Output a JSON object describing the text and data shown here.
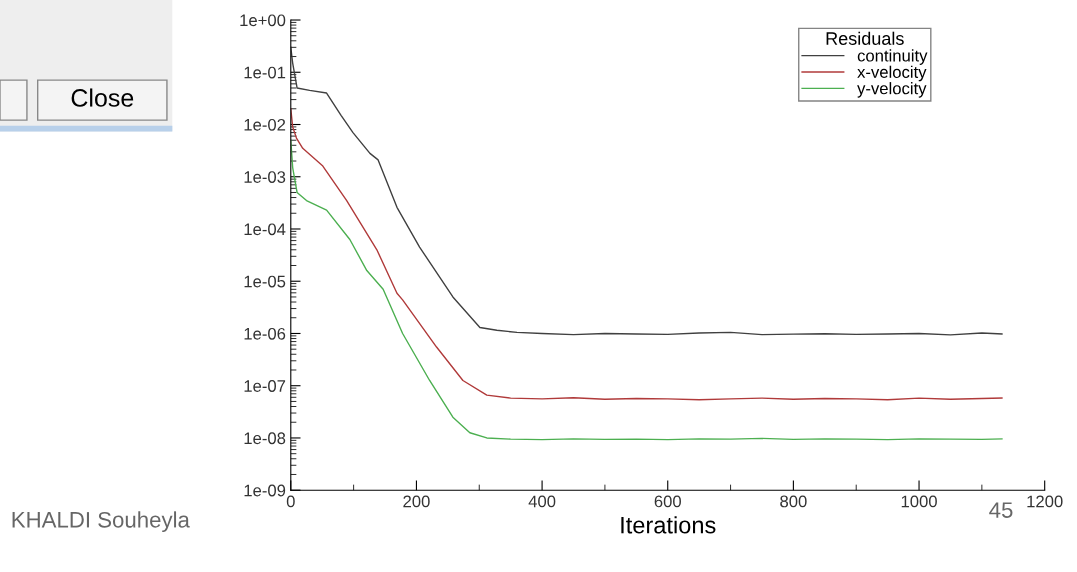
{
  "chart_data": {
    "type": "line",
    "xlabel": "Iterations",
    "legend_title": "Residuals",
    "legend": "top right",
    "log": "y",
    "grid": false,
    "marker": "none",
    "line_style": "solid",
    "xlim": [
      0,
      1200
    ],
    "ylim": [
      1e-09,
      1
    ],
    "xticks": [
      0,
      {
        "value": 100,
        "label": null
      },
      200,
      {
        "value": 300,
        "label": null
      },
      400,
      {
        "value": 500,
        "label": null
      },
      600,
      {
        "value": 700,
        "label": null
      },
      800,
      {
        "value": 900,
        "label": null
      },
      1000,
      {
        "value": 1100,
        "label": null
      },
      1200
    ],
    "yticks": [
      {
        "value": 1,
        "label": "1e+00"
      },
      {
        "value": 0.1,
        "label": "1e-01"
      },
      {
        "value": 0.01,
        "label": "1e-02"
      },
      {
        "value": 0.001,
        "label": "1e-03"
      },
      {
        "value": 0.0001,
        "label": "1e-04"
      },
      {
        "value": 1e-05,
        "label": "1e-05"
      },
      {
        "value": 1e-06,
        "label": "1e-06"
      },
      {
        "value": 1e-07,
        "label": "1e-07"
      },
      {
        "value": 1e-08,
        "label": "1e-08"
      },
      {
        "value": 1e-09,
        "label": "1e-09"
      }
    ],
    "series": [
      {
        "name": "continuity",
        "color": "#404040",
        "x": [
          0,
          3,
          10,
          30,
          57,
          80,
          99,
          126,
          139,
          169,
          205,
          258,
          301,
          328,
          360,
          400,
          450,
          500,
          550,
          600,
          650,
          700,
          750,
          800,
          850,
          900,
          950,
          1000,
          1050,
          1100,
          1132
        ],
        "values": [
          0.3,
          0.15,
          0.05,
          0.045,
          0.04,
          0.015,
          0.007,
          0.0028,
          0.0021,
          0.00026,
          4.5e-05,
          5e-06,
          1.3e-06,
          1.15e-06,
          1.05e-06,
          1e-06,
          9.5e-07,
          1e-06,
          9.8e-07,
          9.6e-07,
          1.02e-06,
          1.05e-06,
          9.5e-07,
          9.7e-07,
          9.9e-07,
          9.6e-07,
          9.8e-07,
          1e-06,
          9.4e-07,
          1.02e-06,
          9.8e-07
        ]
      },
      {
        "name": "x-velocity",
        "color": "#b03a3a",
        "x": [
          0,
          3,
          9,
          19,
          51,
          89,
          137,
          169,
          178,
          232,
          274,
          312,
          350,
          400,
          450,
          500,
          550,
          600,
          650,
          700,
          750,
          800,
          850,
          900,
          950,
          1000,
          1050,
          1100,
          1132
        ],
        "values": [
          0.02,
          0.009,
          0.0055,
          0.0035,
          0.0016,
          0.00035,
          4e-05,
          5.9e-06,
          4.4e-06,
          5.5e-07,
          1.26e-07,
          6.6e-08,
          5.8e-08,
          5.6e-08,
          5.9e-08,
          5.5e-08,
          5.7e-08,
          5.6e-08,
          5.4e-08,
          5.6e-08,
          5.8e-08,
          5.5e-08,
          5.7e-08,
          5.6e-08,
          5.4e-08,
          5.8e-08,
          5.5e-08,
          5.7e-08,
          5.8e-08
        ]
      },
      {
        "name": "y-velocity",
        "color": "#4caf50",
        "x": [
          0,
          3,
          10,
          25,
          57,
          94,
          121,
          147,
          178,
          221,
          258,
          285,
          312,
          350,
          400,
          450,
          500,
          550,
          600,
          650,
          700,
          750,
          800,
          850,
          900,
          950,
          1000,
          1050,
          1100,
          1132
        ],
        "values": [
          0.005,
          0.0015,
          0.0005,
          0.00035,
          0.00023,
          6.3e-05,
          1.6e-05,
          7e-06,
          1e-06,
          1.26e-07,
          2.5e-08,
          1.26e-08,
          1e-08,
          9.5e-09,
          9.3e-09,
          9.6e-09,
          9.4e-09,
          9.5e-09,
          9.3e-09,
          9.6e-09,
          9.5e-09,
          9.8e-09,
          9.4e-09,
          9.6e-09,
          9.5e-09,
          9.3e-09,
          9.6e-09,
          9.5e-09,
          9.4e-09,
          9.6e-09
        ]
      }
    ],
    "annotations": [
      "Close",
      "KHALDI Souheyla",
      "45"
    ]
  }
}
